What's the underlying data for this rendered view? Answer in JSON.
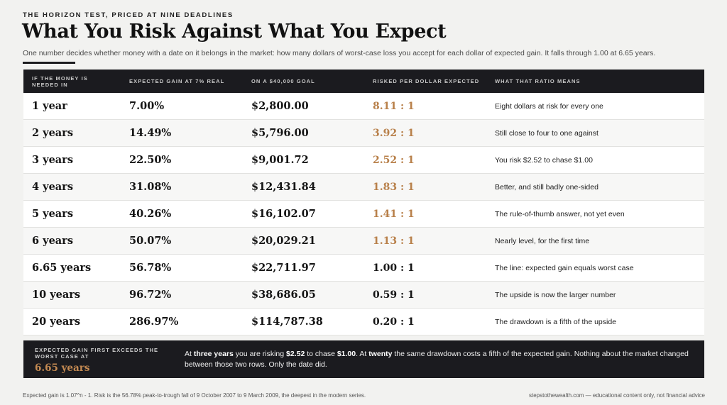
{
  "kicker": "THE HORIZON TEST, PRICED AT NINE DEADLINES",
  "title": "What You Risk Against What You Expect",
  "subtitle": "One number decides whether money with a date on it belongs in the market: how many dollars of worst-case loss you accept for each dollar of expected gain. It falls through 1.00 at 6.65 years.",
  "columns": [
    "IF THE MONEY IS NEEDED IN",
    "EXPECTED GAIN AT 7% REAL",
    "ON A $40,000 GOAL",
    "RISKED PER DOLLAR EXPECTED",
    "WHAT THAT RATIO MEANS"
  ],
  "rows": [
    {
      "horizon": "1 year",
      "gain": "7.00%",
      "dollars": "$2,800.00",
      "ratio": "8.11 : 1",
      "means": "Eight dollars at risk for every one",
      "ratio_color": "#b8804a"
    },
    {
      "horizon": "2 years",
      "gain": "14.49%",
      "dollars": "$5,796.00",
      "ratio": "3.92 : 1",
      "means": "Still close to four to one against",
      "ratio_color": "#b8804a"
    },
    {
      "horizon": "3 years",
      "gain": "22.50%",
      "dollars": "$9,001.72",
      "ratio": "2.52 : 1",
      "means": "You risk $2.52 to chase $1.00",
      "ratio_color": "#b8804a"
    },
    {
      "horizon": "4 years",
      "gain": "31.08%",
      "dollars": "$12,431.84",
      "ratio": "1.83 : 1",
      "means": "Better, and still badly one-sided",
      "ratio_color": "#b8804a"
    },
    {
      "horizon": "5 years",
      "gain": "40.26%",
      "dollars": "$16,102.07",
      "ratio": "1.41 : 1",
      "means": "The rule-of-thumb answer, not yet even",
      "ratio_color": "#b8804a"
    },
    {
      "horizon": "6 years",
      "gain": "50.07%",
      "dollars": "$20,029.21",
      "ratio": "1.13 : 1",
      "means": "Nearly level, for the first time",
      "ratio_color": "#b8804a"
    },
    {
      "horizon": "6.65 years",
      "gain": "56.78%",
      "dollars": "$22,711.97",
      "ratio": "1.00 : 1",
      "means": "The line: expected gain equals worst case",
      "ratio_color": "#151515"
    },
    {
      "horizon": "10 years",
      "gain": "96.72%",
      "dollars": "$38,686.05",
      "ratio": "0.59 : 1",
      "means": "The upside is now the larger number",
      "ratio_color": "#151515"
    },
    {
      "horizon": "20 years",
      "gain": "286.97%",
      "dollars": "$114,787.38",
      "ratio": "0.20 : 1",
      "means": "The drawdown is a fifth of the upside",
      "ratio_color": "#151515"
    }
  ],
  "callout": {
    "label": "EXPECTED GAIN FIRST EXCEEDS THE WORST CASE AT",
    "value": "6.65 years",
    "text_parts": [
      {
        "t": "At ",
        "b": false
      },
      {
        "t": "three years",
        "b": true
      },
      {
        "t": " you are risking ",
        "b": false
      },
      {
        "t": "$2.52",
        "b": true
      },
      {
        "t": " to chase ",
        "b": false
      },
      {
        "t": "$1.00",
        "b": true
      },
      {
        "t": ". At ",
        "b": false
      },
      {
        "t": "twenty",
        "b": true
      },
      {
        "t": " the same drawdown costs a fifth of the expected gain. Nothing about the market changed between those two rows. Only the date did.",
        "b": false
      }
    ]
  },
  "footer": {
    "left": "Expected gain is 1.07^n - 1. Risk is the 56.78% peak-to-trough fall of 9 October 2007 to 9 March 2009, the deepest in the modern series.",
    "right": "stepstothewealth.com — educational content only, not financial advice"
  },
  "colors": {
    "header_bg": "#1b1b1f",
    "accent": "#c48a52"
  }
}
